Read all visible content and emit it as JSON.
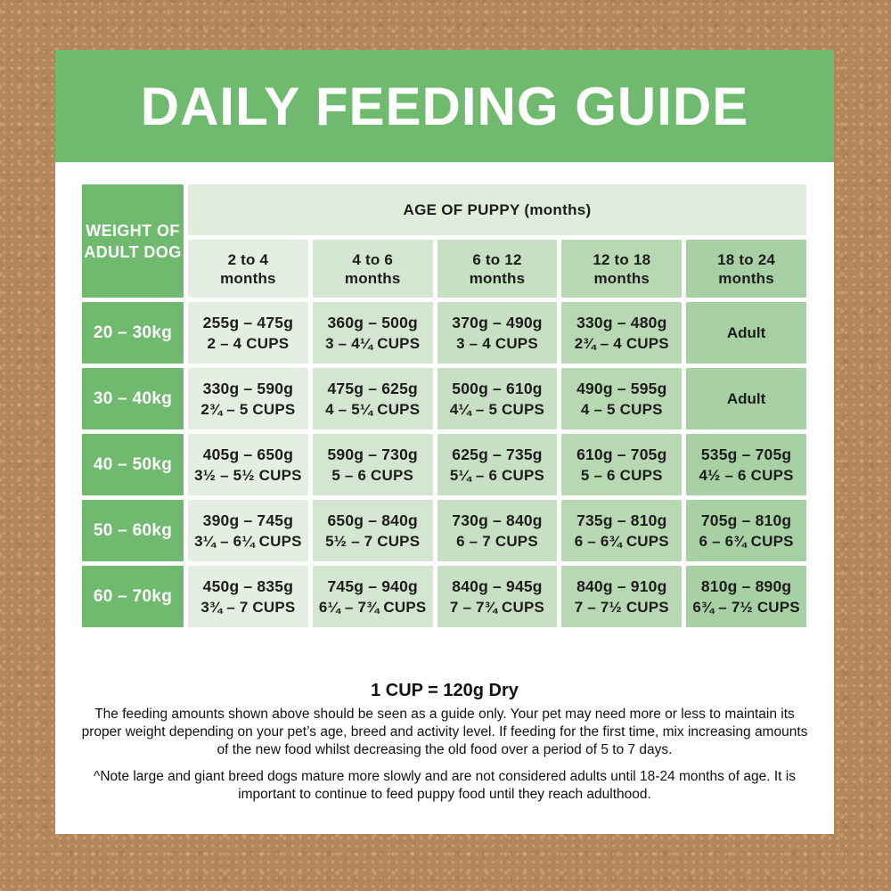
{
  "title": "DAILY FEEDING GUIDE",
  "table": {
    "corner_header": "WEIGHT OF ADULT DOG",
    "age_header": "AGE OF PUPPY (months)",
    "age_columns": [
      {
        "range": "2 to 4",
        "unit": "months"
      },
      {
        "range": "4 to 6",
        "unit": "months"
      },
      {
        "range": "6 to 12",
        "unit": "months"
      },
      {
        "range": "12 to 18",
        "unit": "months"
      },
      {
        "range": "18 to 24",
        "unit": "months"
      }
    ],
    "rows": [
      {
        "weight": "20 – 30kg",
        "cells": [
          [
            "255g – 475g",
            "2 – 4 CUPS"
          ],
          [
            "360g – 500g",
            "3 – 4¼ CUPS"
          ],
          [
            "370g – 490g",
            "3 – 4 CUPS"
          ],
          [
            "330g – 480g",
            "2¾ – 4 CUPS"
          ],
          [
            "Adult"
          ]
        ]
      },
      {
        "weight": "30 – 40kg",
        "cells": [
          [
            "330g – 590g",
            "2¾ – 5 CUPS"
          ],
          [
            "475g – 625g",
            "4 – 5¼ CUPS"
          ],
          [
            "500g – 610g",
            "4¼ – 5 CUPS"
          ],
          [
            "490g – 595g",
            "4 – 5 CUPS"
          ],
          [
            "Adult"
          ]
        ]
      },
      {
        "weight": "40 – 50kg",
        "cells": [
          [
            "405g – 650g",
            "3½ – 5½ CUPS"
          ],
          [
            "590g – 730g",
            "5 – 6 CUPS"
          ],
          [
            "625g – 735g",
            "5¼ – 6 CUPS"
          ],
          [
            "610g – 705g",
            "5 – 6 CUPS"
          ],
          [
            "535g – 705g",
            "4½ – 6 CUPS"
          ]
        ]
      },
      {
        "weight": "50 – 60kg",
        "cells": [
          [
            "390g – 745g",
            "3¼ – 6¼ CUPS"
          ],
          [
            "650g – 840g",
            "5½ – 7 CUPS"
          ],
          [
            "730g – 840g",
            "6 – 7 CUPS"
          ],
          [
            "735g – 810g",
            "6 – 6¾ CUPS"
          ],
          [
            "705g – 810g",
            "6 – 6¾ CUPS"
          ]
        ]
      },
      {
        "weight": "60 – 70kg",
        "cells": [
          [
            "450g – 835g",
            "3¾ – 7 CUPS"
          ],
          [
            "745g – 940g",
            "6¼ – 7¾ CUPS"
          ],
          [
            "840g – 945g",
            "7 – 7¾ CUPS"
          ],
          [
            "840g – 910g",
            "7 – 7½ CUPS"
          ],
          [
            "810g – 890g",
            "6¾ – 7½ CUPS"
          ]
        ]
      }
    ]
  },
  "footer": {
    "cup_note": "1 CUP = 120g Dry",
    "guidance": "The feeding amounts shown above should be seen as a guide only. Your pet may need more or less to maintain its proper weight depending on your pet’s age, breed and activity level. If feeding for the first time, mix increasing amounts of the new food whilst decreasing the old food over a period of 5 to 7 days.",
    "breed_note": "^Note large and giant breed dogs mature more slowly and are not considered adults until 18-24 months of age. It is important to continue to feed puppy food until they reach adulthood."
  },
  "colors": {
    "banner_green": "#6fba6e",
    "age_header_bg": "#e0ecdc",
    "column_tints": [
      "#e5eee2",
      "#d4e6d1",
      "#c7dfc3",
      "#b7d8b3",
      "#a8d0a5"
    ],
    "cell_text": "#1d1d1b",
    "background_brown": "#b4875a",
    "card_white": "#ffffff"
  }
}
